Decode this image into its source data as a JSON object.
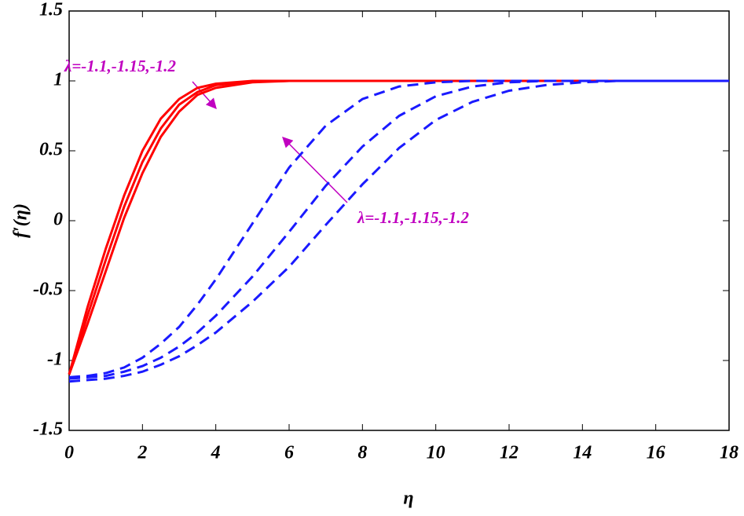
{
  "chart_data": {
    "type": "line",
    "x_label": "η",
    "y_label": "f′(η)",
    "x": [
      0,
      0.5,
      1,
      1.5,
      2,
      2.5,
      3,
      3.5,
      4,
      5,
      6,
      7,
      8,
      9,
      10,
      11,
      12,
      13,
      14,
      15,
      16,
      18
    ],
    "series": [
      {
        "color": "#ff0000",
        "linestyle": "solid",
        "values": [
          -1.1,
          -0.62,
          -0.2,
          0.18,
          0.5,
          0.73,
          0.87,
          0.95,
          0.98,
          1.0,
          1,
          1,
          1,
          1,
          1,
          1,
          1,
          1,
          1,
          1,
          1,
          1
        ]
      },
      {
        "color": "#ff0000",
        "linestyle": "solid",
        "values": [
          -1.1,
          -0.68,
          -0.28,
          0.1,
          0.42,
          0.66,
          0.83,
          0.92,
          0.97,
          0.995,
          1,
          1,
          1,
          1,
          1,
          1,
          1,
          1,
          1,
          1,
          1,
          1
        ]
      },
      {
        "color": "#ff0000",
        "linestyle": "solid",
        "values": [
          -1.1,
          -0.74,
          -0.36,
          0.02,
          0.34,
          0.6,
          0.78,
          0.9,
          0.95,
          0.99,
          1,
          1,
          1,
          1,
          1,
          1,
          1,
          1,
          1,
          1,
          1,
          1
        ]
      },
      {
        "color": "#1a1aff",
        "linestyle": "dashed",
        "values": [
          -1.12,
          -1.11,
          -1.09,
          -1.05,
          -0.98,
          -0.88,
          -0.76,
          -0.6,
          -0.42,
          -0.02,
          0.38,
          0.68,
          0.87,
          0.96,
          0.99,
          1,
          1,
          1,
          1,
          1,
          1,
          1
        ]
      },
      {
        "color": "#1a1aff",
        "linestyle": "dashed",
        "values": [
          -1.13,
          -1.12,
          -1.11,
          -1.08,
          -1.04,
          -0.98,
          -0.9,
          -0.8,
          -0.68,
          -0.4,
          -0.08,
          0.25,
          0.53,
          0.75,
          0.89,
          0.96,
          0.99,
          1,
          1,
          1,
          1,
          1
        ]
      },
      {
        "color": "#1a1aff",
        "linestyle": "dashed",
        "values": [
          -1.15,
          -1.14,
          -1.13,
          -1.11,
          -1.08,
          -1.03,
          -0.97,
          -0.89,
          -0.8,
          -0.58,
          -0.33,
          -0.03,
          0.26,
          0.52,
          0.72,
          0.85,
          0.93,
          0.97,
          0.99,
          1,
          1,
          1
        ]
      }
    ],
    "annotations": [
      {
        "text": "λ=-1.1,-1.15,-1.2",
        "color": "#c000c0"
      },
      {
        "text": "λ=-1.1,-1.15,-1.2",
        "color": "#c000c0"
      }
    ],
    "xlim": [
      0,
      18
    ],
    "xticks": [
      0,
      2,
      4,
      6,
      8,
      10,
      12,
      14,
      16,
      18
    ],
    "ylim": [
      -1.5,
      1.5
    ],
    "yticks": [
      -1.5,
      -1,
      -0.5,
      0,
      0.5,
      1,
      1.5
    ],
    "grid": false
  }
}
